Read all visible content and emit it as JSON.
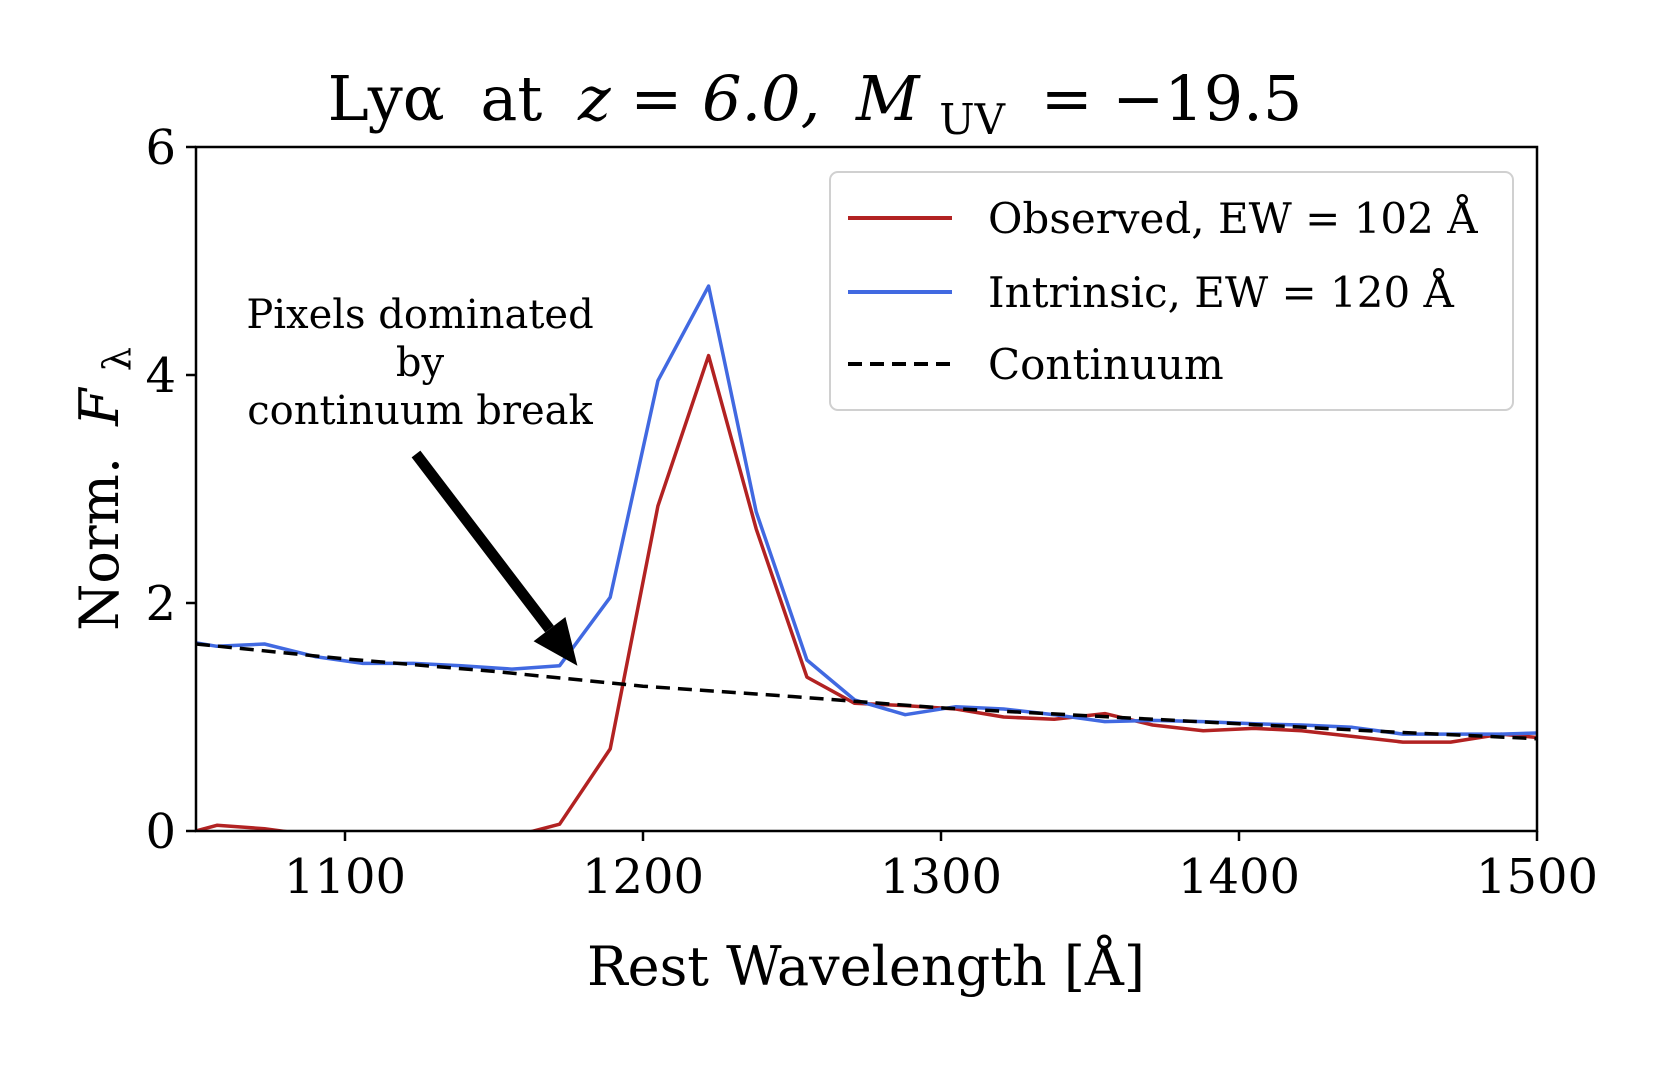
{
  "chart_data": {
    "type": "line",
    "title": "Lyα at z = 6.0, M_UV = −19.5",
    "title_parts": {
      "line": "Lyα",
      "at": "at",
      "z_expr": "z = 6.0,",
      "m_symbol": "M",
      "m_sub": "UV",
      "m_value": "= −19.5"
    },
    "xlabel": "Rest Wavelength [Å]",
    "ylabel_main": "Norm.",
    "ylabel_symbol": "F",
    "ylabel_sub": "λ",
    "xlim": [
      1050,
      1500
    ],
    "ylim": [
      0,
      6
    ],
    "x_ticks": [
      1100,
      1200,
      1300,
      1400,
      1500
    ],
    "x_tick_labels": [
      "1100",
      "1200",
      "1300",
      "1400",
      "1500"
    ],
    "y_ticks": [
      0,
      2,
      4,
      6
    ],
    "y_tick_labels": [
      "0",
      "2",
      "4",
      "6"
    ],
    "legend_position": "top-right",
    "series": [
      {
        "name": "Observed, EW = 102 Å",
        "color": "#b22222",
        "style": "solid",
        "x": [
          1050,
          1057,
          1073,
          1090,
          1106,
          1123,
          1139,
          1156,
          1172,
          1189,
          1205,
          1222,
          1238,
          1255,
          1271,
          1288,
          1305,
          1321,
          1338,
          1355,
          1371,
          1388,
          1405,
          1421,
          1438,
          1455,
          1471,
          1488,
          1500
        ],
        "values": [
          0.0,
          0.05,
          0.02,
          -0.04,
          -0.05,
          -0.06,
          -0.02,
          -0.05,
          0.06,
          0.72,
          2.85,
          4.17,
          2.65,
          1.35,
          1.12,
          1.1,
          1.07,
          1.0,
          0.98,
          1.03,
          0.93,
          0.88,
          0.9,
          0.88,
          0.83,
          0.78,
          0.78,
          0.85,
          0.82
        ]
      },
      {
        "name": "Intrinsic, EW = 120 Å",
        "color": "#4169e1",
        "style": "solid",
        "x": [
          1050,
          1057,
          1073,
          1090,
          1106,
          1123,
          1139,
          1156,
          1172,
          1189,
          1205,
          1222,
          1238,
          1255,
          1271,
          1288,
          1305,
          1321,
          1338,
          1355,
          1371,
          1388,
          1405,
          1421,
          1438,
          1455,
          1471,
          1488,
          1500
        ],
        "values": [
          1.65,
          1.62,
          1.64,
          1.53,
          1.47,
          1.47,
          1.45,
          1.42,
          1.45,
          2.05,
          3.95,
          4.78,
          2.8,
          1.5,
          1.15,
          1.02,
          1.09,
          1.07,
          1.02,
          0.96,
          0.97,
          0.96,
          0.94,
          0.93,
          0.91,
          0.85,
          0.85,
          0.85,
          0.86
        ]
      },
      {
        "name": "Continuum",
        "color": "#000000",
        "style": "dashed",
        "x": [
          1050,
          1100,
          1150,
          1200,
          1250,
          1300,
          1350,
          1400,
          1450,
          1500
        ],
        "values": [
          1.64,
          1.51,
          1.4,
          1.27,
          1.18,
          1.08,
          1.01,
          0.94,
          0.87,
          0.81
        ]
      }
    ],
    "annotation": {
      "lines": [
        "Pixels dominated",
        "by",
        "continuum break"
      ],
      "arrow_to": [
        1178,
        1.45
      ]
    }
  }
}
